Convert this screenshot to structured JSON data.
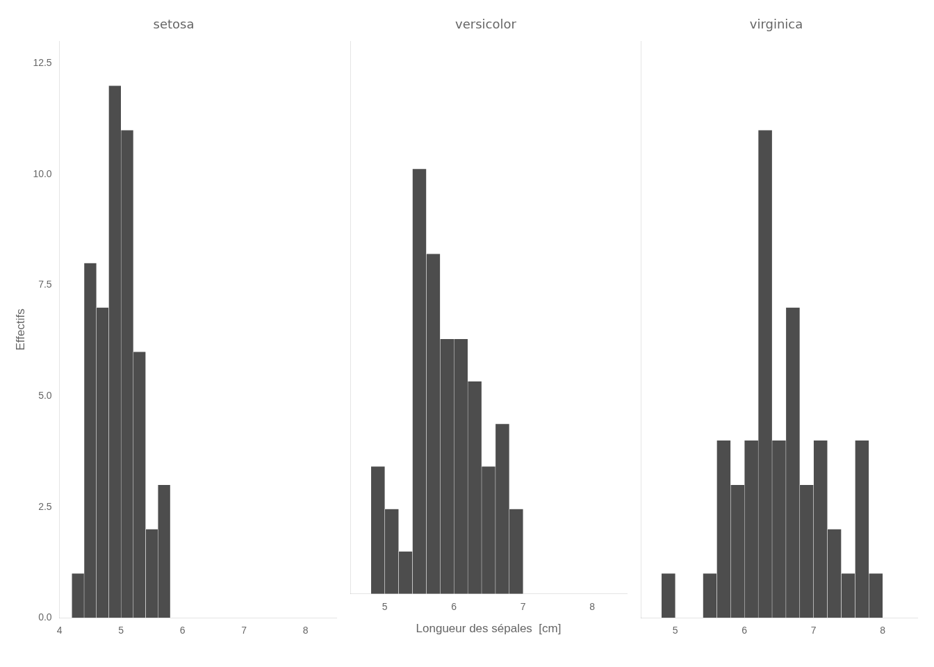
{
  "chart_data": [
    {
      "type": "histogram",
      "title": "setosa",
      "bins": [
        4.0,
        4.2,
        4.4,
        4.6,
        4.8,
        5.0,
        5.2,
        5.4,
        5.6,
        5.8,
        6.0,
        6.2,
        6.4,
        6.6,
        6.8,
        7.0,
        7.2,
        7.4,
        7.6,
        7.8,
        8.0,
        8.2
      ],
      "values": [
        0,
        1,
        8,
        7,
        12,
        11,
        6,
        2,
        3,
        0,
        0,
        0,
        0,
        0,
        0,
        0,
        0,
        0,
        0,
        0,
        0
      ],
      "color": "#4d4d4d",
      "xlim": [
        4.0,
        8.5
      ],
      "xticks": [
        4,
        5,
        6,
        7,
        8
      ],
      "ylim": [
        0,
        13
      ],
      "yticks": [
        {
          "value": 0,
          "label": "0.0"
        },
        2.5,
        {
          "value": 5,
          "label": "5.0"
        },
        7.5,
        {
          "value": 10,
          "label": "10.0"
        },
        12.5
      ],
      "ylabel": "Effectifs",
      "grid": false
    },
    {
      "type": "histogram",
      "title": "versicolor",
      "bins": [
        4.0,
        4.2,
        4.4,
        4.6,
        4.8,
        5.0,
        5.2,
        5.4,
        5.6,
        5.8,
        6.0,
        6.2,
        6.4,
        6.6,
        6.8,
        7.0,
        7.2,
        7.4,
        7.6,
        7.8,
        8.0,
        8.2
      ],
      "values": [
        0,
        0,
        0,
        0,
        3,
        2,
        1,
        10,
        8,
        6,
        6,
        5,
        3,
        4,
        2,
        0,
        0,
        0,
        0,
        0,
        0
      ],
      "color": "#4d4d4d",
      "xlim": [
        4.5,
        8.5
      ],
      "xticks": [
        5,
        6,
        7,
        8
      ],
      "ylim": [
        0,
        13
      ],
      "yticks": [
        {
          "value": 0,
          "label": "0.0"
        },
        2.5,
        {
          "value": 5,
          "label": "5.0"
        },
        7.5,
        {
          "value": 10,
          "label": "10.0"
        },
        12.5
      ],
      "xlabel": "Longueur des sépales  [cm]",
      "grid": false,
      "tick_labels": "x"
    },
    {
      "type": "histogram",
      "title": "virginica",
      "bins": [
        4.0,
        4.2,
        4.4,
        4.6,
        4.8,
        5.0,
        5.2,
        5.4,
        5.6,
        5.8,
        6.0,
        6.2,
        6.4,
        6.6,
        6.8,
        7.0,
        7.2,
        7.4,
        7.6,
        7.8,
        8.0,
        8.2
      ],
      "values": [
        0,
        0,
        0,
        0,
        1,
        0,
        0,
        1,
        4,
        3,
        4,
        11,
        4,
        7,
        3,
        4,
        2,
        1,
        4,
        1,
        0
      ],
      "color": "#4d4d4d",
      "xlim": [
        4.5,
        8.5
      ],
      "xticks": [
        5,
        6,
        7,
        8
      ],
      "ylim": [
        0,
        13
      ],
      "yticks": [
        {
          "value": 0,
          "label": "0.0"
        },
        2.5,
        {
          "value": 5,
          "label": "5.0"
        },
        7.5,
        {
          "value": 10,
          "label": "10.0"
        },
        12.5
      ],
      "grid": false,
      "tick_labels": "x"
    }
  ]
}
